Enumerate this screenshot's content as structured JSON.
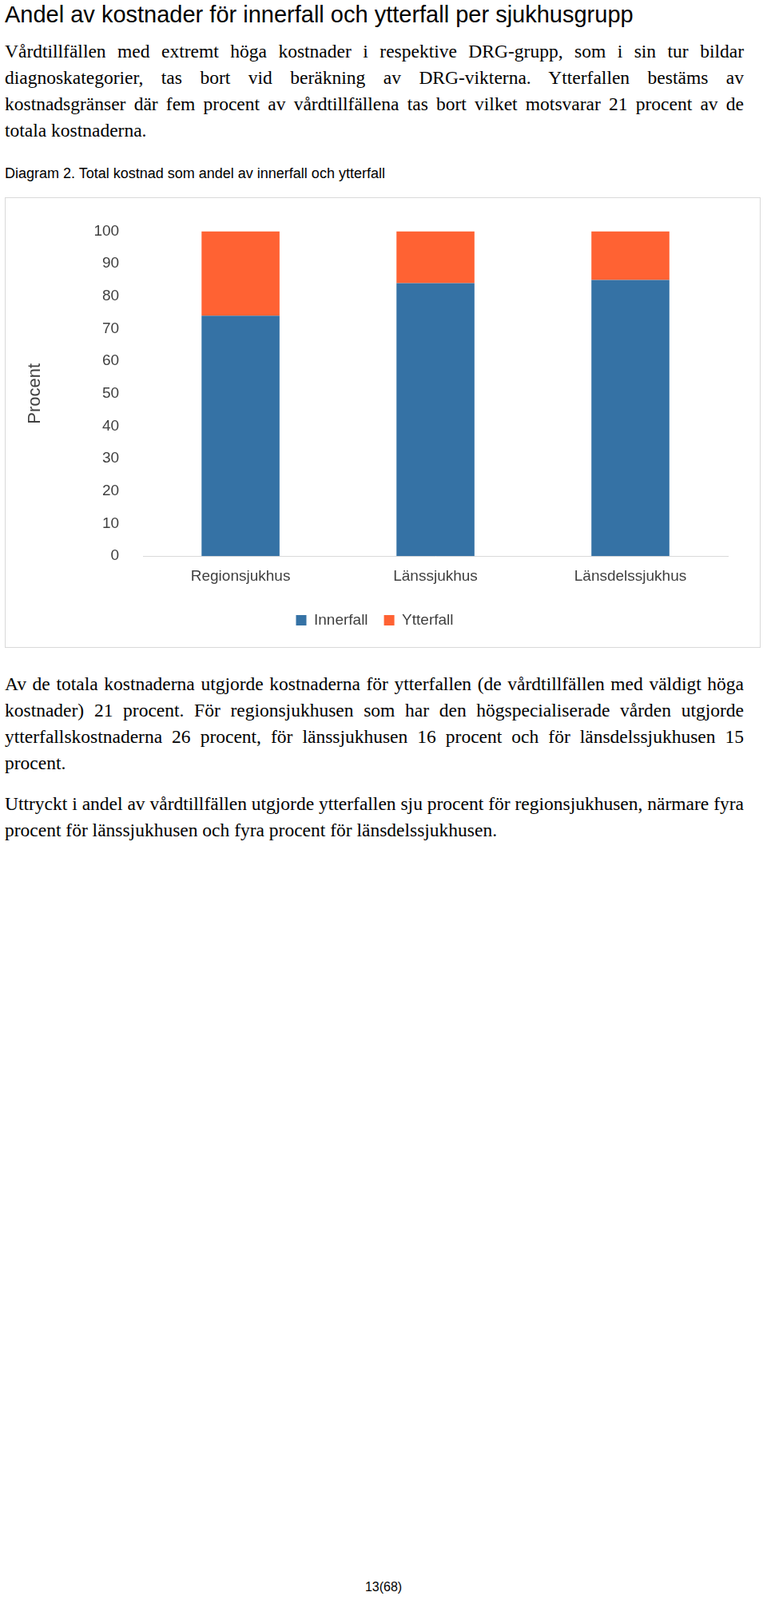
{
  "header": {
    "title": "Andel av kostnader för innerfall och ytterfall per sjukhusgrupp"
  },
  "intro": "Vårdtillfällen med extremt höga kostnader i respektive DRG-grupp, som i sin tur bildar diagnoskategorier, tas bort vid beräkning av DRG-vikterna. Ytterfallen bestäms av kostnadsgränser där fem procent av vårdtillfällena tas bort vilket motsvarar 21 procent av de totala kostnaderna.",
  "caption": "Diagram 2. Total kostnad som andel av innerfall och ytterfall",
  "chart_data": {
    "type": "bar",
    "stacked": true,
    "legend": "bottom",
    "grid": false,
    "y_label": "Procent",
    "categories": [
      "Regionsjukhus",
      "Länssjukhus",
      "Länsdelssjukhus"
    ],
    "series": [
      {
        "name": "Innerfall",
        "color": "#3572a5",
        "values": [
          74,
          84,
          85
        ]
      },
      {
        "name": "Ytterfall",
        "color": "#ff6233",
        "values": [
          26,
          16,
          15
        ]
      }
    ],
    "ylim": [
      0,
      100
    ],
    "yticks": [
      0,
      10,
      20,
      30,
      40,
      50,
      60,
      70,
      80,
      90,
      100
    ]
  },
  "body": [
    "Av de totala kostnaderna utgjorde kostnaderna för ytterfallen (de vårdtillfällen med väldigt höga kostnader) 21 procent. För regionsjukhusen som har den högspecialiserade vården utgjorde ytterfallskostnaderna 26 procent, för länssjukhusen 16 procent och för länsdelssjukhusen 15 procent.",
    "Uttryckt i andel av vårdtillfällen utgjorde ytterfallen sju procent för regionsjukhusen, närmare fyra procent för länssjukhusen och fyra procent för länsdelssjukhusen."
  ],
  "page_number": "13(68)"
}
